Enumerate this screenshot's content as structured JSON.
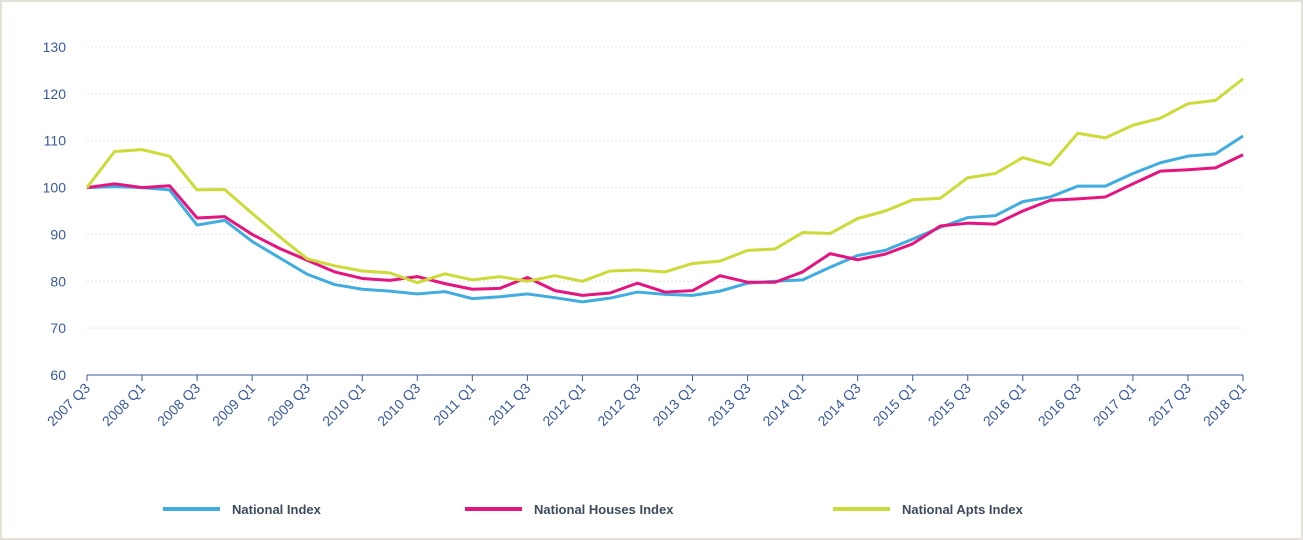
{
  "chart_data": {
    "type": "line",
    "categories": [
      "2007 Q3",
      null,
      "2008 Q1",
      null,
      "2008 Q3",
      null,
      "2009 Q1",
      null,
      "2009 Q3",
      null,
      "2010 Q1",
      null,
      "2010 Q3",
      null,
      "2011 Q1",
      null,
      "2011 Q3",
      null,
      "2012 Q1",
      null,
      "2012 Q3",
      null,
      "2013 Q1",
      null,
      "2013 Q3",
      null,
      "2014 Q1",
      null,
      "2014 Q3",
      null,
      "2015 Q1",
      null,
      "2015 Q3",
      null,
      "2016 Q1",
      null,
      "2016 Q3",
      null,
      "2017 Q1",
      null,
      "2017 Q3",
      null,
      "2018 Q1"
    ],
    "series": [
      {
        "name": "National Index",
        "color": "#41acdf",
        "values": [
          100,
          100.2,
          100,
          99.5,
          92,
          93,
          88.5,
          85,
          81.5,
          79.3,
          78.3,
          77.9,
          77.3,
          77.8,
          76.3,
          76.7,
          77.3,
          76.5,
          75.6,
          76.4,
          77.7,
          77.2,
          77,
          77.9,
          79.6,
          80,
          80.3,
          83,
          85.5,
          86.6,
          89,
          91.5,
          93.6,
          94,
          97,
          98,
          100.3,
          100.3,
          103,
          105.3,
          106.7,
          107.2,
          111
        ]
      },
      {
        "name": "National Houses Index",
        "color": "#e5157f",
        "values": [
          100,
          100.8,
          100,
          100.4,
          93.5,
          93.8,
          90,
          87,
          84.5,
          82,
          80.6,
          80.2,
          81,
          79.5,
          78.3,
          78.5,
          80.8,
          78,
          77,
          77.5,
          79.6,
          77.7,
          78,
          81.2,
          79.8,
          79.8,
          82,
          85.9,
          84.6,
          85.8,
          88,
          91.8,
          92.4,
          92.2,
          95,
          97.3,
          97.6,
          98,
          100.8,
          103.5,
          103.8,
          104.2,
          107
        ]
      },
      {
        "name": "National Apts Index",
        "color": "#ccdb3a",
        "values": [
          100,
          107.7,
          108.1,
          106.7,
          99.5,
          99.6,
          94.5,
          89.5,
          84.8,
          83.3,
          82.2,
          81.8,
          79.7,
          81.6,
          80.3,
          81,
          80,
          81.2,
          80,
          82.2,
          82.4,
          82,
          83.8,
          84.3,
          86.6,
          86.9,
          90.4,
          90.2,
          93.4,
          95,
          97.4,
          97.7,
          102.1,
          103,
          106.4,
          104.8,
          111.6,
          110.6,
          113.3,
          114.8,
          117.9,
          118.6,
          123.2
        ]
      }
    ],
    "ylim": [
      60,
      130
    ],
    "yticks": [
      60,
      70,
      80,
      90,
      100,
      110,
      120,
      130
    ],
    "grid": true,
    "legend": "bottom"
  }
}
